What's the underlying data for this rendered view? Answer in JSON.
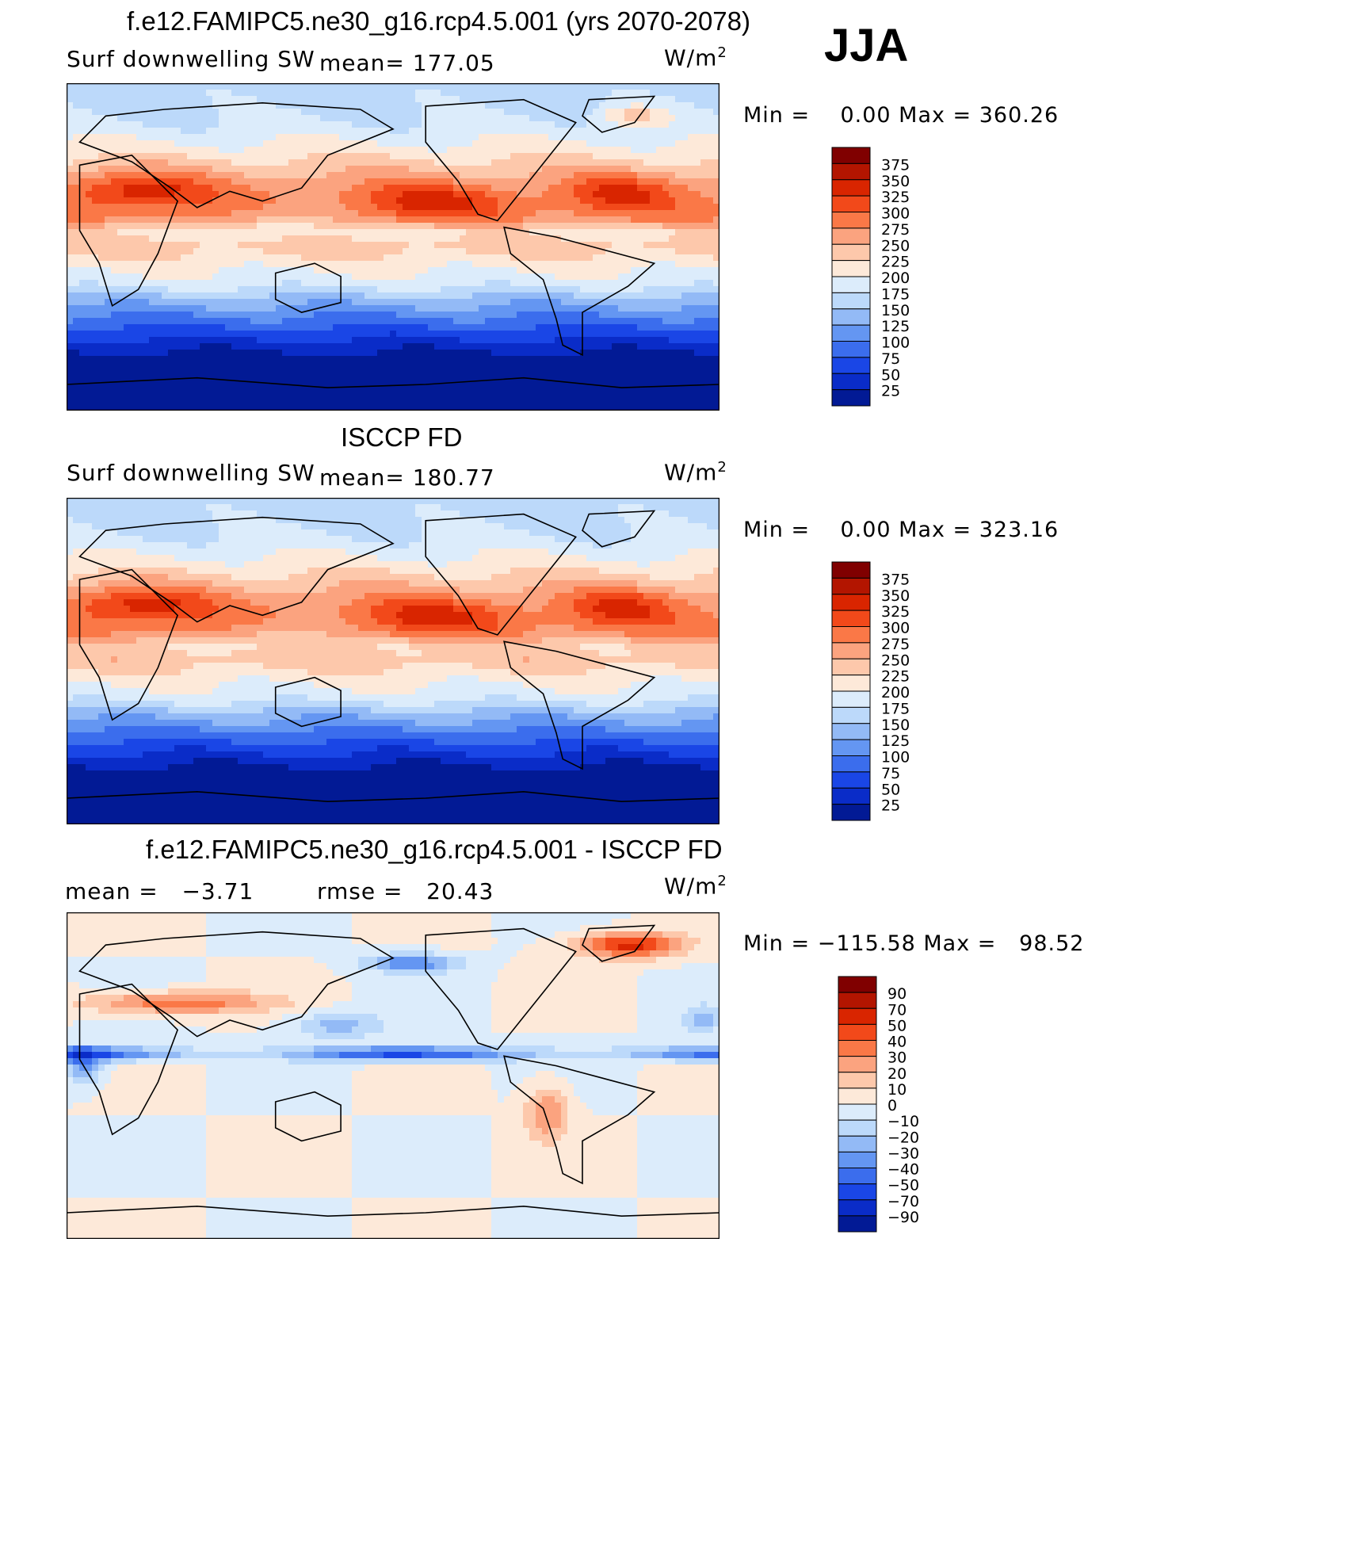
{
  "season": "JJA",
  "chart_data": [
    {
      "type": "heatmap",
      "title": "f.e12.FAMIPC5.ne30_g16.rcp4.5.001 (yrs 2070-2078)",
      "variable": "Surf downwelling SW",
      "mean_text": "mean= 177.05",
      "units": "W/m",
      "units_sup": "2",
      "min_max_text": "Min =    0.00 Max = 360.26",
      "colorbar_labels": [
        "375",
        "350",
        "325",
        "300",
        "275",
        "250",
        "225",
        "200",
        "175",
        "150",
        "125",
        "100",
        "75",
        "50",
        "25"
      ],
      "colors": [
        "#800000",
        "#b31500",
        "#d92500",
        "#f2491a",
        "#fa7847",
        "#fba37f",
        "#fdc8ab",
        "#fde9d9",
        "#dcecfb",
        "#bcd9fa",
        "#93baf6",
        "#6496f2",
        "#3b6ded",
        "#1a46e6",
        "#0a2cc8",
        "#021a95"
      ]
    },
    {
      "type": "heatmap",
      "title": "ISCCP FD",
      "variable": "Surf downwelling SW",
      "mean_text": "mean= 180.77",
      "units": "W/m",
      "units_sup": "2",
      "min_max_text": "Min =    0.00 Max = 323.16",
      "colorbar_labels": [
        "375",
        "350",
        "325",
        "300",
        "275",
        "250",
        "225",
        "200",
        "175",
        "150",
        "125",
        "100",
        "75",
        "50",
        "25"
      ],
      "colors": [
        "#800000",
        "#b31500",
        "#d92500",
        "#f2491a",
        "#fa7847",
        "#fba37f",
        "#fdc8ab",
        "#fde9d9",
        "#dcecfb",
        "#bcd9fa",
        "#93baf6",
        "#6496f2",
        "#3b6ded",
        "#1a46e6",
        "#0a2cc8",
        "#021a95"
      ]
    },
    {
      "type": "heatmap",
      "title": "f.e12.FAMIPC5.ne30_g16.rcp4.5.001 - ISCCP FD",
      "mean_text": "mean =   −3.71",
      "rmse_text": "rmse =   20.43",
      "units": "W/m",
      "units_sup": "2",
      "min_max_text": "Min = −115.58 Max =   98.52",
      "colorbar_labels": [
        "90",
        "70",
        "50",
        "40",
        "30",
        "20",
        "10",
        "0",
        "−10",
        "−20",
        "−30",
        "−40",
        "−50",
        "−70",
        "−90"
      ],
      "colors": [
        "#800000",
        "#b31500",
        "#d92500",
        "#f2491a",
        "#fa7847",
        "#fba37f",
        "#fdc8ab",
        "#fde9d9",
        "#dcecfb",
        "#bcd9fa",
        "#93baf6",
        "#6496f2",
        "#3b6ded",
        "#1a46e6",
        "#0a2cc8",
        "#021a95"
      ]
    }
  ]
}
